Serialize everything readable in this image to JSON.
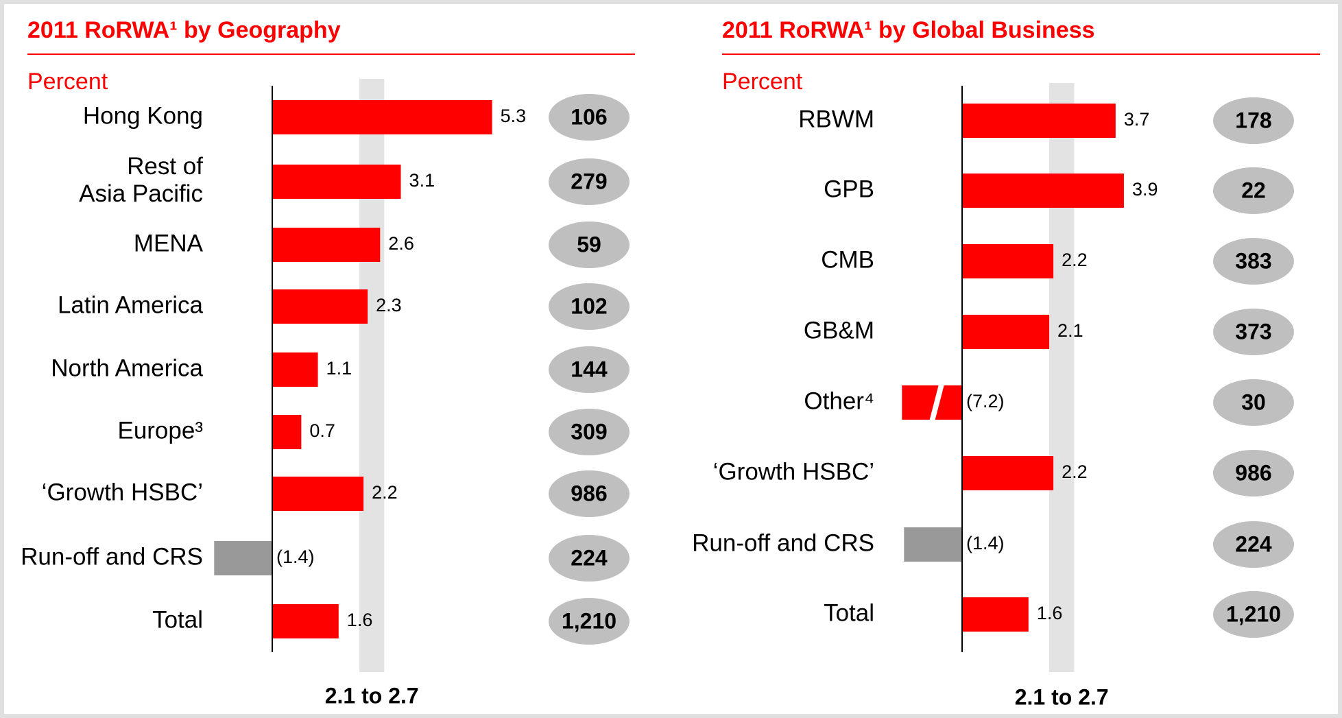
{
  "chart_data": [
    {
      "type": "bar",
      "title": "2011 RoRWA¹ by Geography",
      "subtitle": "Percent",
      "categories": [
        "Hong Kong",
        "Rest of\nAsia Pacific",
        "MENA",
        "Latin America",
        "North America",
        "Europe³",
        "‘Growth HSBC’",
        "Run-off and CRS",
        "Total"
      ],
      "values": [
        5.3,
        3.1,
        2.6,
        2.3,
        1.1,
        0.7,
        2.2,
        -1.4,
        1.6
      ],
      "value_labels": [
        "5.3",
        "3.1",
        "2.6",
        "2.3",
        "1.1",
        "0.7",
        "2.2",
        "(1.4)",
        "1.6"
      ],
      "colors": [
        "#ff0000",
        "#ff0000",
        "#ff0000",
        "#ff0000",
        "#ff0000",
        "#ff0000",
        "#ff0000",
        "#999999",
        "#ff0000"
      ],
      "rwa": [
        106,
        279,
        59,
        102,
        144,
        309,
        986,
        224,
        1210
      ],
      "rwa_labels": [
        "106",
        "279",
        "59",
        "102",
        "144",
        "309",
        "986",
        "224",
        "1,210"
      ],
      "xlim": [
        -1.45,
        5.6
      ],
      "target_range": [
        2.1,
        2.7
      ],
      "target_label": "2.1 to 2.7"
    },
    {
      "type": "bar",
      "title": "2011 RoRWA¹ by Global Business",
      "subtitle": "Percent",
      "categories": [
        "RBWM",
        "GPB",
        "CMB",
        "GB&M",
        "Other⁴",
        "‘Growth HSBC’",
        "Run-off and CRS",
        "Total"
      ],
      "values": [
        3.7,
        3.9,
        2.2,
        2.1,
        -7.2,
        2.2,
        -1.4,
        1.6
      ],
      "value_labels": [
        "3.7",
        "3.9",
        "2.2",
        "2.1",
        "(7.2)",
        "2.2",
        "(1.4)",
        "1.6"
      ],
      "colors": [
        "#ff0000",
        "#ff0000",
        "#ff0000",
        "#ff0000",
        "#ff0000",
        "#ff0000",
        "#999999",
        "#ff0000"
      ],
      "rwa": [
        178,
        22,
        383,
        373,
        30,
        986,
        224,
        1210
      ],
      "rwa_labels": [
        "178",
        "22",
        "383",
        "373",
        "30",
        "986",
        "224",
        "1,210"
      ],
      "xlim": [
        -1.45,
        5.6
      ],
      "target_range": [
        2.1,
        2.7
      ],
      "target_label": "2.1 to 2.7"
    }
  ]
}
